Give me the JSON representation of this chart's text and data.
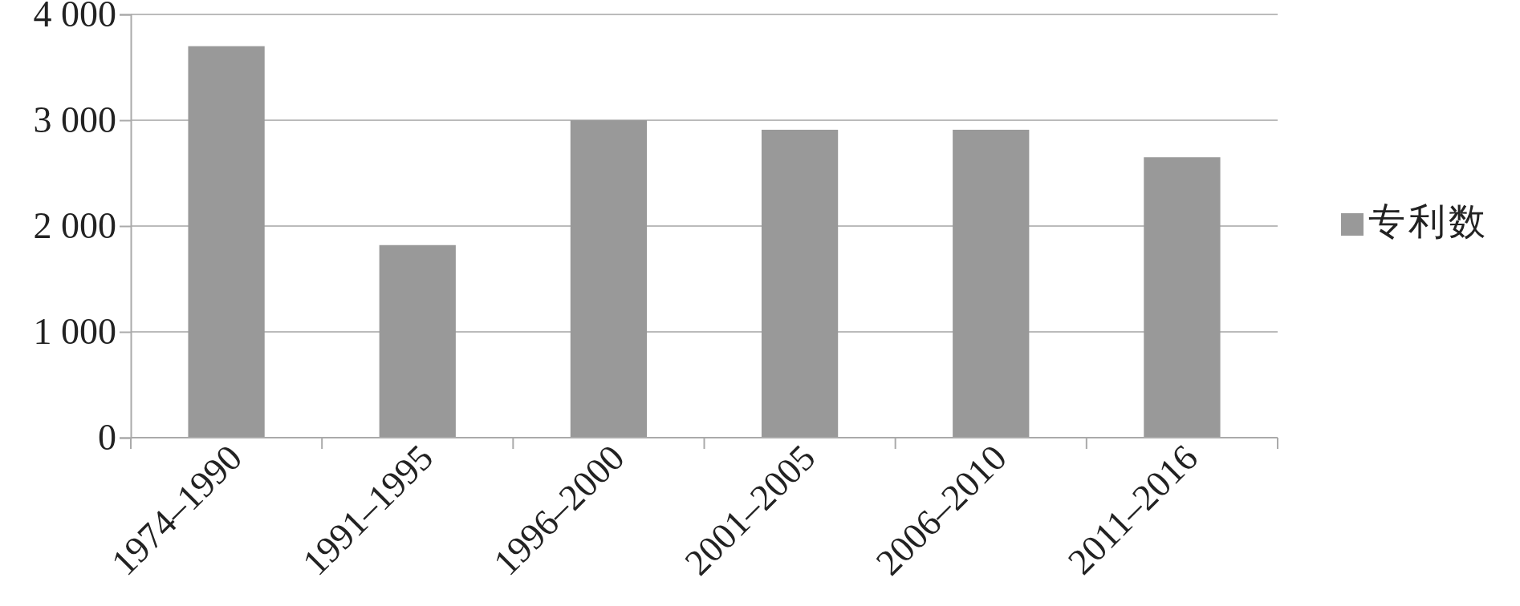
{
  "chart_data": {
    "type": "bar",
    "categories": [
      "1974–1990",
      "1991–1995",
      "1996–2000",
      "2001–2005",
      "2006–2010",
      "2011–2016"
    ],
    "series": [
      {
        "name": "专利数",
        "color": "#999999",
        "values": [
          3700,
          1820,
          3000,
          2910,
          2910,
          2650
        ]
      }
    ],
    "ylim": [
      0,
      4000
    ],
    "yticks": [
      {
        "value": 0,
        "label": "0"
      },
      {
        "value": 1000,
        "label": "1 000"
      },
      {
        "value": 2000,
        "label": "2 000"
      },
      {
        "value": 3000,
        "label": "3 000"
      },
      {
        "value": 4000,
        "label": "4 000"
      }
    ],
    "grid": "y",
    "legend": "right"
  }
}
